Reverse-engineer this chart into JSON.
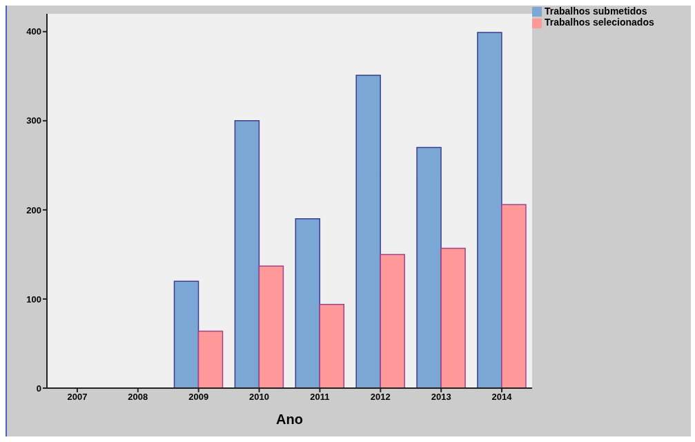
{
  "chart_data": {
    "type": "bar",
    "xlabel": "Ano",
    "categories": [
      "2007",
      "2008",
      "2009",
      "2010",
      "2011",
      "2012",
      "2013",
      "2014"
    ],
    "series": [
      {
        "name": "Trabalhos submetidos",
        "color": "#7ba7d4",
        "values": [
          0,
          0,
          120,
          300,
          190,
          351,
          270,
          399
        ]
      },
      {
        "name": "Trabalhos selecionados",
        "color": "#ff9999",
        "values": [
          0,
          0,
          64,
          137,
          94,
          150,
          157,
          206
        ]
      }
    ],
    "ylim": [
      0,
      420
    ],
    "yticks": [
      0,
      100,
      200,
      300,
      400
    ],
    "legend": "top right"
  }
}
